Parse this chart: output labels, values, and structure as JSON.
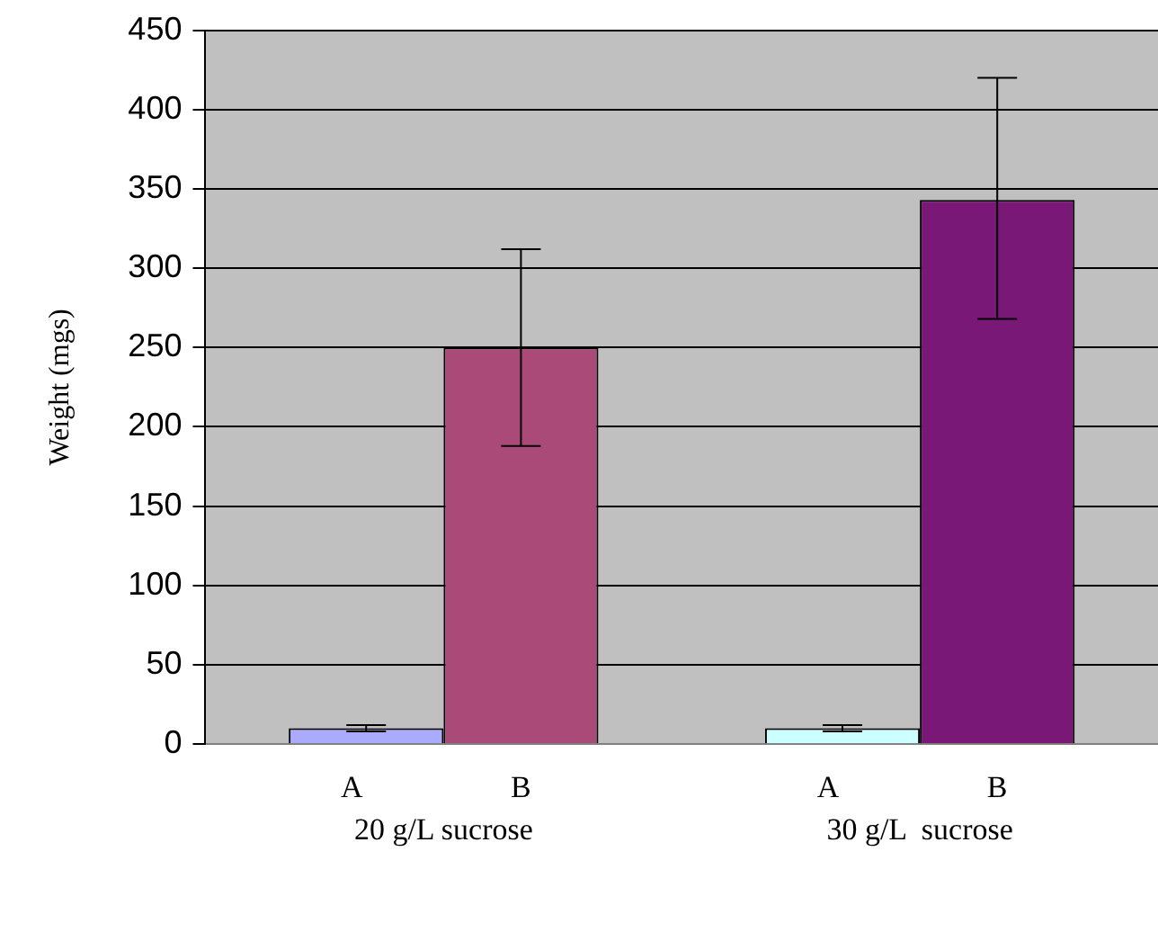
{
  "chart_data": {
    "type": "bar",
    "ylabel": "Weight (mgs)",
    "categories": [
      "20 g/L sucrose",
      "30 g/L  sucrose"
    ],
    "series": [
      {
        "name": "A",
        "colors": [
          "#aaaaff",
          "#ccffff"
        ],
        "values": [
          10,
          10
        ],
        "errors": [
          2,
          2
        ]
      },
      {
        "name": "B",
        "colors": [
          "#aa4a78",
          "#7a1878"
        ],
        "values": [
          250,
          343
        ],
        "errors": [
          62,
          [
            268,
            420
          ]
        ]
      }
    ],
    "ylim": [
      0,
      450
    ],
    "yticks": [
      0,
      50,
      100,
      150,
      200,
      250,
      300,
      350,
      400,
      450
    ],
    "grid": "y",
    "legend": false
  }
}
